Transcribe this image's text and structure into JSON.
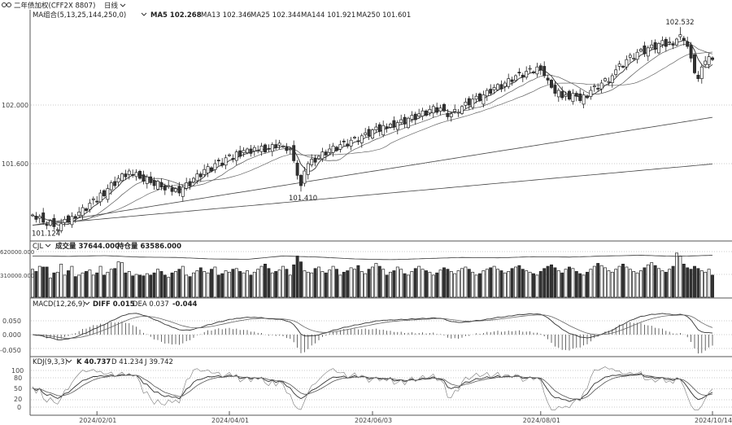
{
  "header": {
    "link_icon": "link-icon",
    "title": "二年债加权(CFF2X 8807)",
    "period": "日线",
    "period_chevron": "chevron-down-icon"
  },
  "price_panel": {
    "indicator": "MA组合(5,13,25,144,250,0)",
    "ma5": "MA5 102.268",
    "ma13": "MA13 102.346",
    "ma25": "MA25 102.344",
    "ma144": "MA144 101.921",
    "ma250": "MA250 101.601",
    "y_ticks": [
      "102.000",
      "101.600"
    ],
    "max_label": "102.532",
    "min_label": "101.124",
    "local_low_label": "101.410"
  },
  "volume_panel": {
    "indicator": "CJL",
    "volume": "成交量 37644.000",
    "open_interest": "持仓量 63586.000",
    "y_ticks": [
      "620000.000",
      "310000.000"
    ]
  },
  "macd_panel": {
    "indicator": "MACD(12,26,9)",
    "diff": "DIFF 0.015",
    "dea": "DEA 0.037",
    "macd": "-0.044",
    "y_ticks": [
      "0.050",
      "0.000",
      "-0.050"
    ]
  },
  "kdj_panel": {
    "indicator": "KDJ(9,3,3)",
    "k": "K 40.737",
    "d": "D 41.234",
    "j": "J 39.742",
    "y_ticks": [
      "100",
      "80",
      "50",
      "20",
      "0"
    ]
  },
  "x_axis": {
    "labels": [
      "2024/02/01",
      "2024/04/01",
      "2024/06/03",
      "2024/08/01",
      "2024/10/14"
    ],
    "label_bar_index": [
      18,
      55,
      95,
      142,
      190
    ]
  },
  "colors": {
    "up": "#ffffff",
    "down": "#333333",
    "line": "#333333",
    "grid": "#bbbbbb"
  },
  "chart_data": {
    "type": "candlestick",
    "title": "二年债加权(CFF2X 8807) 日线",
    "price_ticks": [
      102.0,
      101.6
    ],
    "volume_ticks": [
      620000,
      310000
    ],
    "macd_ticks": [
      0.05,
      0.0,
      -0.05
    ],
    "kdj_ticks": [
      100,
      80,
      50,
      20,
      0
    ],
    "high_overrides": {
      "181": 102.532
    },
    "low_overrides": {
      "7": 101.124,
      "75": 101.41
    },
    "close": [
      101.25,
      101.22,
      101.24,
      101.2,
      101.18,
      101.21,
      101.17,
      101.15,
      101.19,
      101.22,
      101.2,
      101.24,
      101.23,
      101.27,
      101.3,
      101.28,
      101.33,
      101.36,
      101.34,
      101.4,
      101.38,
      101.43,
      101.47,
      101.45,
      101.5,
      101.53,
      101.51,
      101.55,
      101.52,
      101.54,
      101.5,
      101.48,
      101.51,
      101.47,
      101.45,
      101.48,
      101.44,
      101.42,
      101.45,
      101.41,
      101.43,
      101.4,
      101.44,
      101.47,
      101.45,
      101.5,
      101.53,
      101.51,
      101.56,
      101.58,
      101.55,
      101.6,
      101.62,
      101.59,
      101.64,
      101.66,
      101.63,
      101.68,
      101.65,
      101.69,
      101.7,
      101.67,
      101.71,
      101.69,
      101.72,
      101.68,
      101.7,
      101.73,
      101.71,
      101.74,
      101.72,
      101.69,
      101.7,
      101.62,
      101.52,
      101.45,
      101.55,
      101.6,
      101.63,
      101.61,
      101.65,
      101.68,
      101.66,
      101.7,
      101.72,
      101.69,
      101.73,
      101.75,
      101.72,
      101.76,
      101.78,
      101.75,
      101.79,
      101.81,
      101.79,
      101.83,
      101.85,
      101.82,
      101.86,
      101.84,
      101.87,
      101.85,
      101.88,
      101.9,
      101.87,
      101.91,
      101.93,
      101.9,
      101.94,
      101.96,
      101.93,
      101.97,
      101.99,
      101.95,
      101.98,
      101.96,
      101.92,
      101.94,
      101.97,
      101.95,
      101.99,
      102.02,
      102.0,
      102.04,
      102.06,
      102.03,
      102.07,
      102.1,
      102.08,
      102.12,
      102.14,
      102.11,
      102.15,
      102.18,
      102.16,
      102.2,
      102.22,
      102.19,
      102.23,
      102.25,
      102.22,
      102.26,
      102.24,
      102.2,
      102.17,
      102.12,
      102.08,
      102.1,
      102.05,
      102.07,
      102.04,
      102.08,
      102.06,
      102.03,
      102.07,
      102.05,
      102.1,
      102.13,
      102.11,
      102.15,
      102.18,
      102.16,
      102.2,
      102.24,
      102.28,
      102.26,
      102.31,
      102.34,
      102.32,
      102.36,
      102.38,
      102.35,
      102.39,
      102.41,
      102.38,
      102.42,
      102.44,
      102.4,
      102.43,
      102.41,
      102.45,
      102.48,
      102.44,
      102.4,
      102.32,
      102.22,
      102.18,
      102.26,
      102.3,
      102.33,
      102.31
    ],
    "volume_k": [
      380,
      350,
      420,
      410,
      410,
      260,
      330,
      340,
      450,
      300,
      360,
      420,
      280,
      300,
      330,
      350,
      370,
      300,
      330,
      420,
      300,
      340,
      380,
      390,
      480,
      470,
      330,
      350,
      290,
      310,
      300,
      290,
      320,
      300,
      330,
      380,
      350,
      300,
      270,
      330,
      350,
      380,
      420,
      300,
      280,
      330,
      360,
      400,
      350,
      330,
      380,
      410,
      300,
      320,
      360,
      340,
      380,
      390,
      350,
      330,
      360,
      300,
      340,
      380,
      420,
      450,
      390,
      330,
      350,
      370,
      420,
      380,
      300,
      440,
      560,
      480,
      360,
      340,
      330,
      390,
      410,
      350,
      330,
      370,
      420,
      380,
      300,
      340,
      360,
      400,
      380,
      430,
      350,
      320,
      380,
      410,
      460,
      420,
      380,
      300,
      340,
      360,
      410,
      380,
      320,
      300,
      350,
      390,
      420,
      380,
      360,
      340,
      300,
      330,
      370,
      400,
      380,
      350,
      320,
      360,
      390,
      410,
      380,
      340,
      300,
      320,
      360,
      380,
      400,
      420,
      380,
      360,
      330,
      350,
      390,
      410,
      430,
      380,
      360,
      340,
      320,
      300,
      350,
      390,
      420,
      440,
      400,
      360,
      330,
      380,
      410,
      390,
      350,
      320,
      300,
      340,
      380,
      420,
      460,
      430,
      400,
      360,
      340,
      380,
      420,
      450,
      410,
      380,
      350,
      330,
      360,
      400,
      440,
      470,
      430,
      390,
      360,
      340,
      380,
      420,
      600,
      560,
      450,
      400,
      380,
      420,
      390,
      360,
      340,
      380,
      300
    ],
    "open_interest_k_every10": [
      560,
      555,
      565,
      545,
      540,
      520,
      515,
      560,
      545,
      520,
      510,
      525,
      540,
      535,
      550,
      545,
      560,
      570,
      555,
      570
    ]
  }
}
